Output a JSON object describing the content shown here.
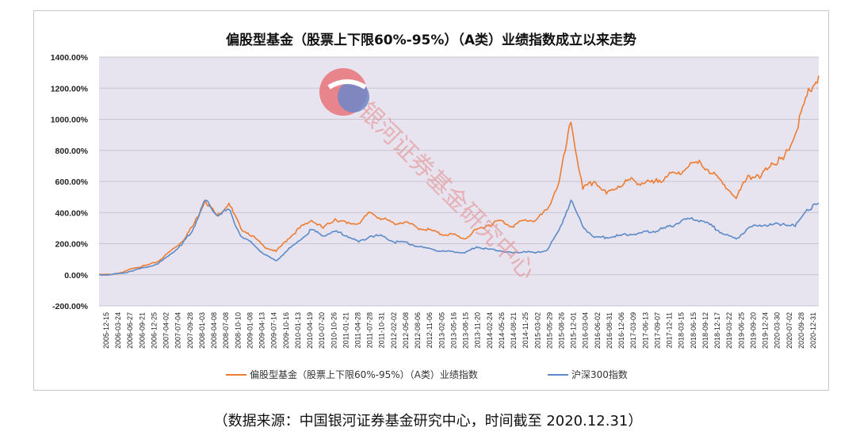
{
  "chart_data": {
    "type": "line",
    "title": "偏股型基金（股票上下限60%-95%）（A类）业绩指数成立以来走势",
    "ylim": [
      -200,
      1400
    ],
    "y_ticks": [
      "-200.00%",
      "0.00%",
      "200.00%",
      "400.00%",
      "600.00%",
      "800.00%",
      "1000.00%",
      "1200.00%",
      "1400.00%"
    ],
    "x_tick_labels": [
      "2005-12-15",
      "2006-03-24",
      "2006-06-27",
      "2006-09-21",
      "2006-12-25",
      "2007-04-02",
      "2007-07-04",
      "2007-09-28",
      "2008-01-03",
      "2008-04-08",
      "2008-07-08",
      "2008-10-10",
      "2009-01-08",
      "2009-04-13",
      "2009-07-14",
      "2009-10-16",
      "2010-01-13",
      "2010-04-19",
      "2010-07-20",
      "2010-10-26",
      "2011-01-21",
      "2011-04-28",
      "2011-07-28",
      "2011-10-31",
      "2012-02-02",
      "2012-05-08",
      "2012-08-06",
      "2012-11-06",
      "2013-02-05",
      "2013-05-16",
      "2013-08-15",
      "2013-11-20",
      "2014-02-24",
      "2014-05-26",
      "2014-08-21",
      "2014-11-25",
      "2015-03-02",
      "2015-05-29",
      "2015-08-26",
      "2015-12-01",
      "2016-03-04",
      "2016-06-02",
      "2016-08-31",
      "2016-12-06",
      "2017-03-09",
      "2017-06-13",
      "2017-09-07",
      "2017-12-11",
      "2018-03-15",
      "2018-06-15",
      "2018-09-12",
      "2018-12-17",
      "2019-03-22",
      "2019-06-25",
      "2019-09-20",
      "2019-12-24",
      "2020-03-30",
      "2020-07-02",
      "2020-09-28",
      "2020-12-31"
    ],
    "grid": true,
    "legend_position": "bottom",
    "series": [
      {
        "name": "偏股型基金（股票上下限60%-95%）（A类）业绩指数",
        "color": "#ED7D31",
        "values": [
          0,
          2,
          15,
          45,
          60,
          85,
          150,
          210,
          320,
          480,
          380,
          460,
          300,
          250,
          180,
          150,
          230,
          300,
          350,
          300,
          360,
          330,
          330,
          400,
          360,
          330,
          340,
          300,
          290,
          260,
          260,
          230,
          290,
          320,
          350,
          310,
          350,
          350,
          420,
          600,
          980,
          550,
          600,
          520,
          570,
          610,
          590,
          590,
          630,
          650,
          700,
          720,
          650,
          580,
          490,
          640,
          620,
          720,
          740,
          900,
          1150,
          1280
        ]
      },
      {
        "name": "沪深300指数",
        "color": "#5B8BC9",
        "values": [
          0,
          2,
          10,
          30,
          48,
          70,
          130,
          190,
          300,
          480,
          380,
          420,
          250,
          200,
          130,
          90,
          160,
          220,
          290,
          250,
          280,
          250,
          210,
          250,
          250,
          210,
          210,
          180,
          170,
          150,
          150,
          140,
          180,
          165,
          155,
          140,
          150,
          140,
          160,
          290,
          480,
          310,
          240,
          240,
          250,
          260,
          270,
          280,
          300,
          330,
          360,
          350,
          310,
          260,
          230,
          300,
          320,
          320,
          330,
          310,
          420,
          460
        ]
      }
    ]
  },
  "legend": {
    "series1_label": "偏股型基金（股票上下限60%-95%）（A类）业绩指数",
    "series2_label": "沪深300指数"
  },
  "watermark": {
    "text": "银河证券基金研究中心"
  },
  "source_note": "（数据来源：中国银河证券基金研究中心，时间截至 2020.12.31）"
}
